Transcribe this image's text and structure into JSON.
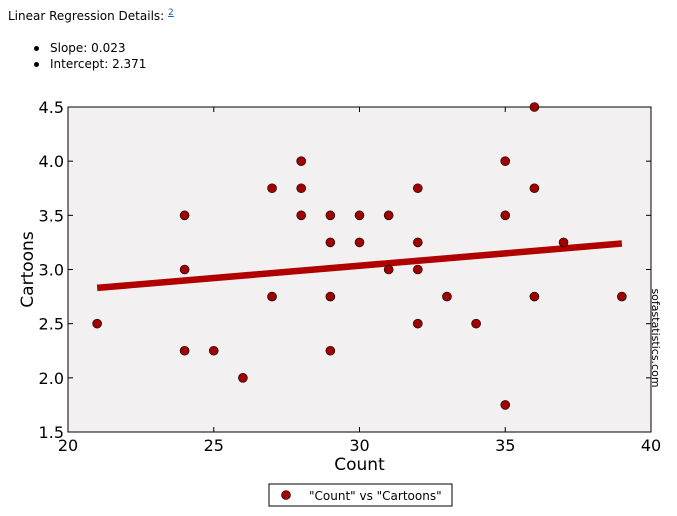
{
  "details": {
    "heading": "Linear Regression Details:",
    "footnote": "2",
    "items": [
      {
        "label": "Slope:",
        "value": "0.023"
      },
      {
        "label": "Intercept:",
        "value": "2.371"
      }
    ]
  },
  "chart_data": {
    "type": "scatter",
    "xlabel": "Count",
    "ylabel": "Cartoons",
    "xlim": [
      20,
      40
    ],
    "ylim": [
      1.5,
      4.5
    ],
    "x_ticks": [
      "20",
      "25",
      "30",
      "35",
      "40"
    ],
    "y_ticks": [
      "1.5",
      "2.0",
      "2.5",
      "3.0",
      "3.5",
      "4.0",
      "4.5"
    ],
    "grid": false,
    "legend_position": "bottom-center",
    "series": [
      {
        "name": "\"Count\" vs \"Cartoons\"",
        "color": "#a00000",
        "points": [
          [
            21,
            2.5
          ],
          [
            24,
            3.5
          ],
          [
            24,
            3.0
          ],
          [
            24,
            2.25
          ],
          [
            25,
            2.25
          ],
          [
            26,
            2.0
          ],
          [
            27,
            3.75
          ],
          [
            27,
            2.75
          ],
          [
            28,
            4.0
          ],
          [
            28,
            3.75
          ],
          [
            28,
            3.5
          ],
          [
            29,
            3.5
          ],
          [
            29,
            3.25
          ],
          [
            29,
            2.75
          ],
          [
            29,
            2.25
          ],
          [
            30,
            3.5
          ],
          [
            30,
            3.25
          ],
          [
            31,
            3.5
          ],
          [
            31,
            3.0
          ],
          [
            32,
            3.75
          ],
          [
            32,
            3.25
          ],
          [
            32,
            3.0
          ],
          [
            32,
            2.5
          ],
          [
            33,
            2.75
          ],
          [
            34,
            2.5
          ],
          [
            35,
            4.0
          ],
          [
            35,
            3.5
          ],
          [
            35,
            1.75
          ],
          [
            36,
            4.5
          ],
          [
            36,
            3.75
          ],
          [
            36,
            2.75
          ],
          [
            37,
            3.25
          ],
          [
            39,
            2.75
          ]
        ]
      }
    ],
    "regression_line": {
      "color": "#b00000",
      "x": [
        21,
        39
      ],
      "y": [
        2.83,
        3.24
      ]
    },
    "plot_background": "#f2f0f0",
    "watermark": "sofastatistics.com"
  }
}
